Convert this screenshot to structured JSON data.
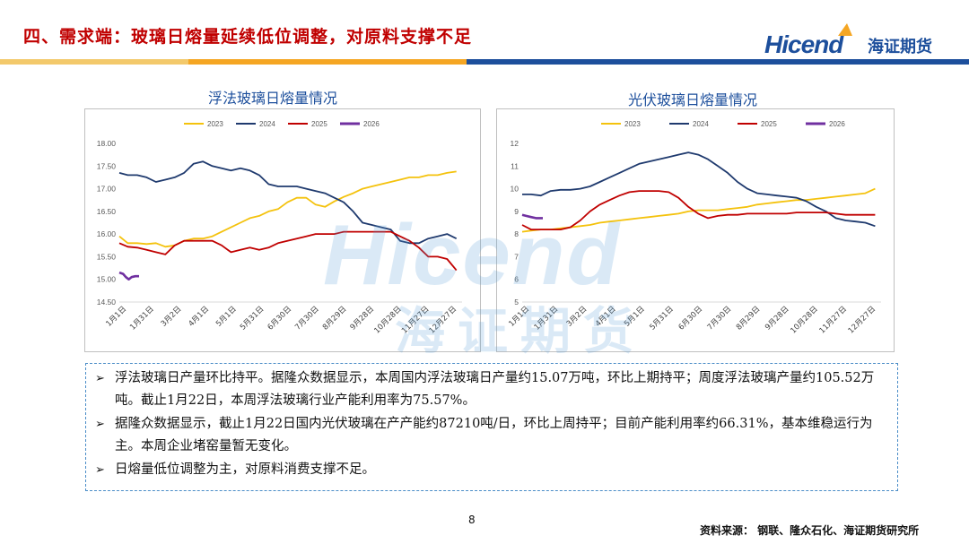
{
  "header": {
    "title": "四、需求端：玻璃日熔量延续低位调整，对原料支撑不足",
    "logo_brand": "Hicend",
    "logo_cn": "海证期货"
  },
  "watermark": {
    "en": "Hicend",
    "cn": "海证期货"
  },
  "colors": {
    "y2023": "#f4c20d",
    "y2024": "#1f3a6e",
    "y2025": "#c00000",
    "y2026": "#7030a0",
    "accent": "#1d4f9c",
    "title_red": "#c00000"
  },
  "chart_data": [
    {
      "type": "line",
      "title": "浮法玻璃日熔量情况",
      "x_ticks": [
        "1月1日",
        "1月31日",
        "3月2日",
        "4月1日",
        "5月1日",
        "5月31日",
        "6月30日",
        "7月30日",
        "8月29日",
        "9月28日",
        "10月28日",
        "11月27日",
        "12月27日"
      ],
      "ylim": [
        14.5,
        18.0
      ],
      "y_ticks": [
        "14.50",
        "15.00",
        "15.50",
        "16.00",
        "16.50",
        "17.00",
        "17.50",
        "18.00"
      ],
      "y_tick_values": [
        14.5,
        15.0,
        15.5,
        16.0,
        16.5,
        17.0,
        17.5,
        18.0
      ],
      "legend": [
        "2023",
        "2024",
        "2025",
        "2026"
      ],
      "series": [
        {
          "name": "2023",
          "day": [
            1,
            10,
            20,
            30,
            40,
            50,
            60,
            70,
            80,
            90,
            100,
            110,
            120,
            130,
            140,
            150,
            160,
            170,
            180,
            190,
            200,
            210,
            220,
            230,
            240,
            250,
            260,
            270,
            280,
            290,
            300,
            310,
            320,
            330,
            340,
            350,
            360
          ],
          "values": [
            15.95,
            15.8,
            15.8,
            15.78,
            15.8,
            15.72,
            15.75,
            15.85,
            15.9,
            15.9,
            15.95,
            16.05,
            16.15,
            16.25,
            16.35,
            16.4,
            16.5,
            16.55,
            16.7,
            16.8,
            16.8,
            16.65,
            16.6,
            16.72,
            16.82,
            16.9,
            17.0,
            17.05,
            17.1,
            17.15,
            17.2,
            17.25,
            17.25,
            17.3,
            17.3,
            17.35,
            17.38
          ]
        },
        {
          "name": "2024",
          "day": [
            1,
            10,
            20,
            30,
            40,
            50,
            60,
            70,
            80,
            90,
            100,
            110,
            120,
            130,
            140,
            150,
            160,
            170,
            180,
            190,
            200,
            210,
            220,
            230,
            240,
            250,
            260,
            270,
            280,
            290,
            300,
            310,
            320,
            330,
            340,
            350,
            360
          ],
          "values": [
            17.35,
            17.3,
            17.3,
            17.25,
            17.15,
            17.2,
            17.25,
            17.35,
            17.55,
            17.6,
            17.5,
            17.45,
            17.4,
            17.45,
            17.4,
            17.3,
            17.1,
            17.05,
            17.05,
            17.05,
            17.0,
            16.95,
            16.9,
            16.8,
            16.7,
            16.5,
            16.25,
            16.2,
            16.15,
            16.1,
            15.85,
            15.8,
            15.8,
            15.9,
            15.95,
            16.0,
            15.9
          ]
        },
        {
          "name": "2025",
          "day": [
            1,
            10,
            20,
            30,
            40,
            50,
            60,
            70,
            80,
            90,
            100,
            110,
            120,
            130,
            140,
            150,
            160,
            170,
            180,
            190,
            200,
            210,
            220,
            230,
            240,
            250,
            260,
            270,
            280,
            290,
            300,
            310,
            320,
            330,
            340,
            350,
            360
          ],
          "values": [
            15.8,
            15.72,
            15.7,
            15.65,
            15.6,
            15.55,
            15.75,
            15.85,
            15.85,
            15.85,
            15.85,
            15.75,
            15.6,
            15.65,
            15.7,
            15.65,
            15.7,
            15.8,
            15.85,
            15.9,
            15.95,
            16.0,
            16.0,
            16.0,
            16.05,
            16.05,
            16.05,
            16.05,
            16.05,
            16.05,
            15.95,
            15.85,
            15.7,
            15.5,
            15.5,
            15.45,
            15.2
          ]
        },
        {
          "name": "2026",
          "day": [
            1,
            5,
            8,
            11,
            14,
            18,
            22
          ],
          "values": [
            15.15,
            15.12,
            15.05,
            15.0,
            15.05,
            15.07,
            15.07
          ]
        }
      ]
    },
    {
      "type": "line",
      "title": "光伏玻璃日熔量情况",
      "x_ticks": [
        "1月1日",
        "1月31日",
        "3月2日",
        "4月1日",
        "5月1日",
        "5月31日",
        "6月30日",
        "7月30日",
        "8月29日",
        "9月28日",
        "10月28日",
        "11月27日",
        "12月27日"
      ],
      "ylim": [
        5,
        12
      ],
      "y_ticks": [
        "5",
        "6",
        "7",
        "8",
        "9",
        "10",
        "11",
        "12"
      ],
      "y_tick_values": [
        5,
        6,
        7,
        8,
        9,
        10,
        11,
        12
      ],
      "legend": [
        "2023",
        "2024",
        "2025",
        "2026"
      ],
      "series": [
        {
          "name": "2023",
          "day": [
            1,
            10,
            20,
            30,
            40,
            50,
            60,
            70,
            80,
            90,
            100,
            110,
            120,
            130,
            140,
            150,
            160,
            170,
            180,
            190,
            200,
            210,
            220,
            230,
            240,
            250,
            260,
            270,
            280,
            290,
            300,
            310,
            320,
            330,
            340,
            350,
            360
          ],
          "values": [
            8.1,
            8.15,
            8.2,
            8.2,
            8.25,
            8.3,
            8.35,
            8.4,
            8.5,
            8.55,
            8.6,
            8.65,
            8.7,
            8.75,
            8.8,
            8.85,
            8.9,
            9.0,
            9.05,
            9.05,
            9.05,
            9.1,
            9.15,
            9.2,
            9.3,
            9.35,
            9.4,
            9.45,
            9.5,
            9.5,
            9.55,
            9.6,
            9.65,
            9.7,
            9.75,
            9.8,
            10.0
          ]
        },
        {
          "name": "2024",
          "day": [
            1,
            10,
            20,
            30,
            40,
            50,
            60,
            70,
            80,
            90,
            100,
            110,
            120,
            130,
            140,
            150,
            160,
            170,
            180,
            190,
            200,
            210,
            220,
            230,
            240,
            250,
            260,
            270,
            280,
            290,
            300,
            310,
            320,
            330,
            340,
            350,
            360
          ],
          "values": [
            9.75,
            9.75,
            9.7,
            9.9,
            9.95,
            9.95,
            10.0,
            10.1,
            10.3,
            10.5,
            10.7,
            10.9,
            11.1,
            11.2,
            11.3,
            11.4,
            11.5,
            11.6,
            11.5,
            11.3,
            11.0,
            10.7,
            10.3,
            10.0,
            9.8,
            9.75,
            9.7,
            9.65,
            9.6,
            9.45,
            9.2,
            9.0,
            8.7,
            8.6,
            8.55,
            8.5,
            8.35
          ]
        },
        {
          "name": "2025",
          "day": [
            1,
            10,
            20,
            30,
            40,
            50,
            60,
            70,
            80,
            90,
            100,
            110,
            120,
            130,
            140,
            150,
            160,
            170,
            180,
            190,
            200,
            210,
            220,
            230,
            240,
            250,
            260,
            270,
            280,
            290,
            300,
            310,
            320,
            330,
            340,
            350,
            360
          ],
          "values": [
            8.4,
            8.2,
            8.2,
            8.2,
            8.2,
            8.3,
            8.6,
            9.0,
            9.3,
            9.5,
            9.7,
            9.85,
            9.9,
            9.9,
            9.9,
            9.85,
            9.6,
            9.2,
            8.9,
            8.7,
            8.8,
            8.85,
            8.85,
            8.9,
            8.9,
            8.9,
            8.9,
            8.9,
            8.95,
            8.95,
            8.95,
            8.95,
            8.9,
            8.85,
            8.85,
            8.85,
            8.85
          ]
        },
        {
          "name": "2026",
          "day": [
            1,
            5,
            10,
            15,
            22
          ],
          "values": [
            8.85,
            8.8,
            8.75,
            8.7,
            8.7
          ]
        }
      ]
    }
  ],
  "notes": [
    "浮法玻璃日产量环比持平。据隆众数据显示，本周国内浮法玻璃日产量约15.07万吨，环比上期持平；周度浮法玻璃产量约105.52万吨。截止1月22日，本周浮法玻璃行业产能利用率为75.57%。",
    "据隆众数据显示，截止1月22日国内光伏玻璃在产产能约87210吨/日，环比上周持平；目前产能利用率约66.31%，基本维稳运行为主。本周企业堵窑量暂无变化。",
    "日熔量低位调整为主，对原料消费支撑不足。"
  ],
  "footer": {
    "page_number": "8",
    "source": "资料来源：  钢联、隆众石化、海证期货研究所"
  }
}
